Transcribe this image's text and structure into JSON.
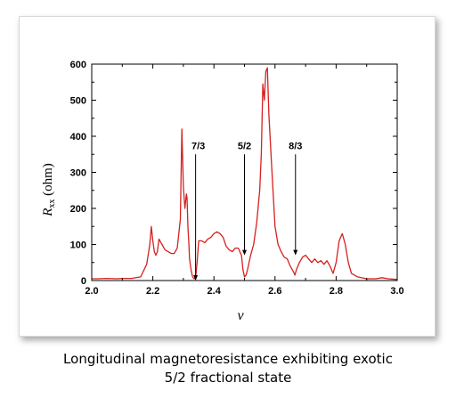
{
  "chart_data": {
    "type": "line",
    "xlabel": "ν",
    "ylabel": "R",
    "ylabel_subscript": "xx",
    "ylabel_unit": " (ohm)",
    "xlim": [
      2.0,
      3.0
    ],
    "ylim": [
      0,
      600
    ],
    "grid": false,
    "legend": "none",
    "xticks": [
      "2.0",
      "2.2",
      "2.4",
      "2.6",
      "2.8",
      "3.0"
    ],
    "yticks": [
      "0",
      "100",
      "200",
      "300",
      "400",
      "500",
      "600"
    ],
    "series": [
      {
        "color": "#d62020",
        "x": [
          2.0,
          2.02,
          2.05,
          2.08,
          2.1,
          2.13,
          2.16,
          2.18,
          2.19,
          2.195,
          2.2,
          2.205,
          2.21,
          2.215,
          2.22,
          2.23,
          2.24,
          2.25,
          2.26,
          2.27,
          2.28,
          2.29,
          2.295,
          2.3,
          2.305,
          2.31,
          2.312,
          2.315,
          2.318,
          2.32,
          2.325,
          2.33,
          2.335,
          2.34,
          2.345,
          2.35,
          2.36,
          2.37,
          2.38,
          2.39,
          2.4,
          2.41,
          2.42,
          2.43,
          2.44,
          2.45,
          2.46,
          2.47,
          2.48,
          2.49,
          2.495,
          2.5,
          2.505,
          2.51,
          2.52,
          2.53,
          2.54,
          2.55,
          2.555,
          2.56,
          2.565,
          2.57,
          2.575,
          2.58,
          2.59,
          2.6,
          2.61,
          2.62,
          2.63,
          2.64,
          2.65,
          2.66,
          2.665,
          2.67,
          2.68,
          2.69,
          2.7,
          2.71,
          2.72,
          2.73,
          2.74,
          2.75,
          2.76,
          2.77,
          2.78,
          2.79,
          2.8,
          2.81,
          2.82,
          2.83,
          2.84,
          2.85,
          2.87,
          2.9,
          2.93,
          2.95,
          2.97,
          3.0
        ],
        "y": [
          5,
          5,
          6,
          5,
          6,
          6,
          10,
          45,
          100,
          150,
          110,
          80,
          70,
          80,
          115,
          100,
          85,
          80,
          75,
          75,
          90,
          170,
          420,
          260,
          200,
          240,
          230,
          150,
          100,
          60,
          30,
          10,
          5,
          8,
          50,
          110,
          110,
          105,
          115,
          120,
          130,
          135,
          130,
          120,
          95,
          85,
          80,
          90,
          90,
          70,
          30,
          10,
          15,
          30,
          70,
          100,
          160,
          250,
          350,
          545,
          500,
          580,
          590,
          460,
          300,
          150,
          100,
          80,
          65,
          60,
          40,
          25,
          15,
          30,
          50,
          65,
          70,
          60,
          50,
          60,
          50,
          55,
          45,
          55,
          40,
          20,
          50,
          110,
          130,
          100,
          50,
          20,
          10,
          5,
          5,
          8,
          5,
          3
        ]
      }
    ],
    "annotations": [
      {
        "text": "7/3",
        "x": 2.34,
        "y_top": 350,
        "y_bottom": 0
      },
      {
        "text": "5/2",
        "x": 2.5,
        "y_top": 350,
        "y_bottom": 70
      },
      {
        "text": "8/3",
        "x": 2.667,
        "y_top": 350,
        "y_bottom": 70
      }
    ]
  },
  "caption": {
    "line1": "Longitudinal magnetoresistance exhibiting exotic",
    "line2": "5/2 fractional state"
  }
}
